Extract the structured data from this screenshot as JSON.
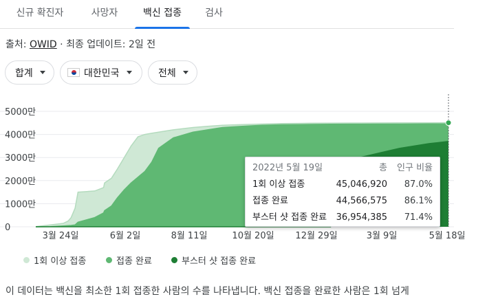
{
  "tabs": [
    {
      "label": "신규 확진자",
      "active": false
    },
    {
      "label": "사망자",
      "active": false
    },
    {
      "label": "백신 접종",
      "active": true
    },
    {
      "label": "검사",
      "active": false
    }
  ],
  "source": {
    "prefix": "출처: ",
    "link": "OWID",
    "suffix": " · 최종 업데이트: 2일 전"
  },
  "filters": {
    "measure": "합계",
    "country": "대한민국",
    "range": "전체"
  },
  "tooltip": {
    "date": "2022년 5월 19일",
    "col_total": "총",
    "col_pct": "인구 비율",
    "rows": [
      {
        "label": "1회 이상 접종",
        "total": "45,046,920",
        "pct": "87.0%"
      },
      {
        "label": "접종 완료",
        "total": "44,566,575",
        "pct": "86.1%"
      },
      {
        "label": "부스터 샷 접종 완료",
        "total": "36,954,385",
        "pct": "71.4%"
      }
    ]
  },
  "legend": [
    {
      "label": "1회 이상 접종",
      "color": "#cfe8d5"
    },
    {
      "label": "접종 완료",
      "color": "#5fb873"
    },
    {
      "label": "부스터 샷 접종 완료",
      "color": "#1e7e34"
    }
  ],
  "description": "이 데이터는 백신을 최소한 1회 접종한 사람의 수를 나타냅니다. 백신 접종을 완료한 사람은 1회 넘게",
  "chart_data": {
    "type": "area",
    "ylabels": [
      "0",
      "1000만",
      "2000만",
      "3000만",
      "4000만",
      "5000만"
    ],
    "yticks": [
      0,
      10000000,
      20000000,
      30000000,
      40000000,
      50000000
    ],
    "ylim": [
      0,
      50000000
    ],
    "xlabels": [
      "3월 24일",
      "6월 2일",
      "8월 11일",
      "10월 20일",
      "12월 29일",
      "3월 9일",
      "5월 18일"
    ],
    "x": [
      0,
      15,
      28,
      33,
      36,
      40,
      43,
      60,
      69,
      70,
      77,
      83,
      90,
      97,
      104,
      111,
      118,
      125,
      140,
      160,
      175,
      190,
      210,
      230,
      250,
      270,
      280,
      300,
      330,
      350,
      370,
      400,
      420
    ],
    "series": [
      {
        "name": "1회 이상 접종",
        "color": "#cfe8d5",
        "values": [
          100000,
          800000,
          1500000,
          2500000,
          4000000,
          8000000,
          15000000,
          15500000,
          17000000,
          19000000,
          21000000,
          25000000,
          30000000,
          35000000,
          39000000,
          40000000,
          40500000,
          41000000,
          42000000,
          43000000,
          43500000,
          44000000,
          44300000,
          44500000,
          44700000,
          44800000,
          44850000,
          44900000,
          44950000,
          44980000,
          45000000,
          45030000,
          45046920
        ]
      },
      {
        "name": "접종 완료",
        "color": "#5fb873",
        "values": [
          0,
          100000,
          400000,
          500000,
          600000,
          800000,
          2000000,
          4000000,
          6000000,
          7000000,
          9000000,
          12500000,
          16000000,
          19000000,
          21500000,
          24000000,
          28000000,
          34000000,
          38500000,
          41000000,
          42000000,
          43000000,
          43500000,
          44000000,
          44200000,
          44300000,
          44350000,
          44400000,
          44450000,
          44480000,
          44500000,
          44540000,
          44566575
        ]
      },
      {
        "name": "부스터 샷 접종 완료",
        "color": "#1e7e34",
        "values": [
          0,
          0,
          0,
          0,
          0,
          0,
          0,
          0,
          0,
          0,
          0,
          0,
          0,
          0,
          0,
          0,
          0,
          0,
          0,
          0,
          0,
          0,
          0,
          0,
          0,
          0,
          0,
          0,
          30000000,
          32000000,
          34000000,
          36000000,
          36954385
        ]
      }
    ]
  }
}
